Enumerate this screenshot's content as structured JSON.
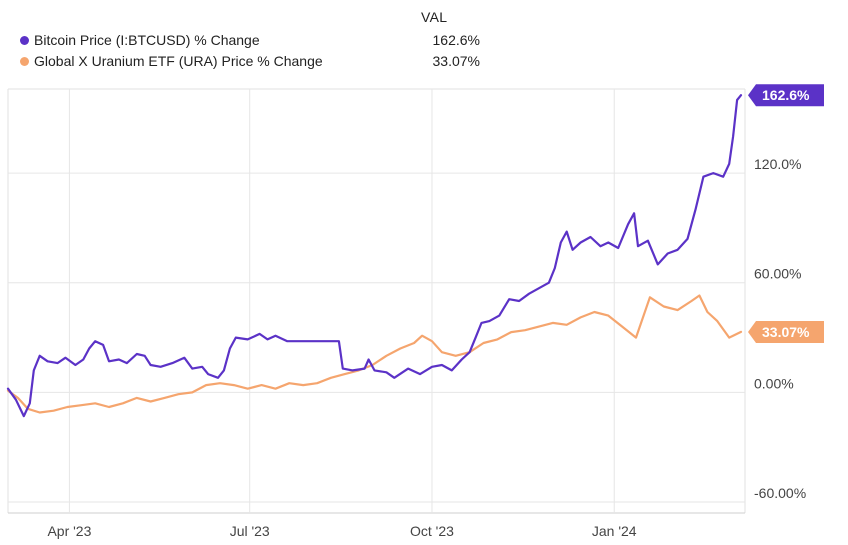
{
  "legend": {
    "header": "VAL",
    "items": [
      {
        "name": "Bitcoin Price (I:BTCUSD) % Change",
        "value": "162.6%",
        "color": "#5b32c7"
      },
      {
        "name": "Global X Uranium ETF (URA) Price % Change",
        "value": "33.07%",
        "color": "#f5a56e"
      }
    ]
  },
  "chart_data": {
    "type": "line",
    "y_ticks": [
      {
        "value": 120,
        "label": "120.0%"
      },
      {
        "value": 60,
        "label": "60.00%"
      },
      {
        "value": 0,
        "label": "0.00%"
      },
      {
        "value": -60,
        "label": "-60.00%"
      }
    ],
    "x_ticks": [
      {
        "date": "2023-04-01",
        "label": "Apr '23"
      },
      {
        "date": "2023-07-01",
        "label": "Jul '23"
      },
      {
        "date": "2023-10-01",
        "label": "Oct '23"
      },
      {
        "date": "2024-01-01",
        "label": "Jan '24"
      }
    ],
    "xlim": [
      "2023-03-01",
      "2024-03-07"
    ],
    "ylim": [
      -66,
      166
    ],
    "grid": true,
    "series": [
      {
        "name": "Bitcoin Price (I:BTCUSD) % Change",
        "color": "#5b32c7",
        "end_label": "162.6%",
        "points": [
          [
            "2023-03-01",
            2
          ],
          [
            "2023-03-05",
            -4
          ],
          [
            "2023-03-09",
            -13
          ],
          [
            "2023-03-12",
            -6
          ],
          [
            "2023-03-14",
            12
          ],
          [
            "2023-03-17",
            20
          ],
          [
            "2023-03-21",
            17
          ],
          [
            "2023-03-26",
            16
          ],
          [
            "2023-03-30",
            19
          ],
          [
            "2023-04-04",
            15
          ],
          [
            "2023-04-08",
            18
          ],
          [
            "2023-04-11",
            24
          ],
          [
            "2023-04-14",
            28
          ],
          [
            "2023-04-18",
            26
          ],
          [
            "2023-04-21",
            17
          ],
          [
            "2023-04-26",
            18
          ],
          [
            "2023-04-30",
            16
          ],
          [
            "2023-05-05",
            21
          ],
          [
            "2023-05-09",
            20
          ],
          [
            "2023-05-12",
            15
          ],
          [
            "2023-05-17",
            14
          ],
          [
            "2023-05-23",
            16
          ],
          [
            "2023-05-29",
            19
          ],
          [
            "2023-06-02",
            13
          ],
          [
            "2023-06-07",
            14
          ],
          [
            "2023-06-10",
            10
          ],
          [
            "2023-06-15",
            8
          ],
          [
            "2023-06-18",
            12
          ],
          [
            "2023-06-21",
            24
          ],
          [
            "2023-06-24",
            30
          ],
          [
            "2023-06-30",
            29
          ],
          [
            "2023-07-06",
            32
          ],
          [
            "2023-07-10",
            29
          ],
          [
            "2023-07-14",
            31
          ],
          [
            "2023-07-20",
            28
          ],
          [
            "2023-07-27",
            28
          ],
          [
            "2023-08-03",
            28
          ],
          [
            "2023-08-10",
            28
          ],
          [
            "2023-08-15",
            28
          ],
          [
            "2023-08-17",
            13
          ],
          [
            "2023-08-22",
            12
          ],
          [
            "2023-08-28",
            13
          ],
          [
            "2023-08-30",
            18
          ],
          [
            "2023-09-02",
            12
          ],
          [
            "2023-09-08",
            11
          ],
          [
            "2023-09-12",
            8
          ],
          [
            "2023-09-19",
            13
          ],
          [
            "2023-09-25",
            10
          ],
          [
            "2023-10-01",
            14
          ],
          [
            "2023-10-06",
            15
          ],
          [
            "2023-10-11",
            12
          ],
          [
            "2023-10-16",
            18
          ],
          [
            "2023-10-20",
            22
          ],
          [
            "2023-10-23",
            30
          ],
          [
            "2023-10-26",
            38
          ],
          [
            "2023-10-30",
            39
          ],
          [
            "2023-11-04",
            42
          ],
          [
            "2023-11-09",
            51
          ],
          [
            "2023-11-14",
            50
          ],
          [
            "2023-11-19",
            54
          ],
          [
            "2023-11-24",
            57
          ],
          [
            "2023-11-29",
            60
          ],
          [
            "2023-12-02",
            68
          ],
          [
            "2023-12-05",
            82
          ],
          [
            "2023-12-08",
            88
          ],
          [
            "2023-12-11",
            78
          ],
          [
            "2023-12-15",
            82
          ],
          [
            "2023-12-20",
            85
          ],
          [
            "2023-12-25",
            80
          ],
          [
            "2023-12-29",
            82
          ],
          [
            "2024-01-03",
            79
          ],
          [
            "2024-01-08",
            92
          ],
          [
            "2024-01-11",
            98
          ],
          [
            "2024-01-13",
            80
          ],
          [
            "2024-01-18",
            83
          ],
          [
            "2024-01-23",
            70
          ],
          [
            "2024-01-28",
            76
          ],
          [
            "2024-02-02",
            78
          ],
          [
            "2024-02-07",
            84
          ],
          [
            "2024-02-11",
            100
          ],
          [
            "2024-02-15",
            118
          ],
          [
            "2024-02-20",
            120
          ],
          [
            "2024-02-25",
            118
          ],
          [
            "2024-02-28",
            125
          ],
          [
            "2024-03-01",
            140
          ],
          [
            "2024-03-03",
            160
          ],
          [
            "2024-03-05",
            162.6
          ]
        ]
      },
      {
        "name": "Global X Uranium ETF (URA) Price % Change",
        "color": "#f5a56e",
        "end_label": "33.07%",
        "points": [
          [
            "2023-03-01",
            1
          ],
          [
            "2023-03-06",
            -3
          ],
          [
            "2023-03-11",
            -9
          ],
          [
            "2023-03-17",
            -11
          ],
          [
            "2023-03-24",
            -10
          ],
          [
            "2023-03-31",
            -8
          ],
          [
            "2023-04-07",
            -7
          ],
          [
            "2023-04-14",
            -6
          ],
          [
            "2023-04-21",
            -8
          ],
          [
            "2023-04-28",
            -6
          ],
          [
            "2023-05-05",
            -3
          ],
          [
            "2023-05-12",
            -5
          ],
          [
            "2023-05-19",
            -3
          ],
          [
            "2023-05-26",
            -1
          ],
          [
            "2023-06-02",
            0
          ],
          [
            "2023-06-09",
            4
          ],
          [
            "2023-06-16",
            5
          ],
          [
            "2023-06-23",
            4
          ],
          [
            "2023-06-30",
            2
          ],
          [
            "2023-07-07",
            4
          ],
          [
            "2023-07-14",
            2
          ],
          [
            "2023-07-21",
            5
          ],
          [
            "2023-07-28",
            4
          ],
          [
            "2023-08-04",
            5
          ],
          [
            "2023-08-11",
            8
          ],
          [
            "2023-08-18",
            10
          ],
          [
            "2023-08-25",
            12
          ],
          [
            "2023-09-01",
            15
          ],
          [
            "2023-09-08",
            20
          ],
          [
            "2023-09-15",
            24
          ],
          [
            "2023-09-22",
            27
          ],
          [
            "2023-09-26",
            31
          ],
          [
            "2023-10-01",
            28
          ],
          [
            "2023-10-06",
            22
          ],
          [
            "2023-10-13",
            20
          ],
          [
            "2023-10-20",
            22
          ],
          [
            "2023-10-27",
            27
          ],
          [
            "2023-11-03",
            29
          ],
          [
            "2023-11-10",
            33
          ],
          [
            "2023-11-17",
            34
          ],
          [
            "2023-11-24",
            36
          ],
          [
            "2023-12-01",
            38
          ],
          [
            "2023-12-08",
            37
          ],
          [
            "2023-12-15",
            41
          ],
          [
            "2023-12-22",
            44
          ],
          [
            "2023-12-29",
            42
          ],
          [
            "2024-01-05",
            36
          ],
          [
            "2024-01-12",
            30
          ],
          [
            "2024-01-19",
            52
          ],
          [
            "2024-01-26",
            47
          ],
          [
            "2024-02-02",
            45
          ],
          [
            "2024-02-09",
            50
          ],
          [
            "2024-02-13",
            53
          ],
          [
            "2024-02-17",
            44
          ],
          [
            "2024-02-22",
            39
          ],
          [
            "2024-02-28",
            30
          ],
          [
            "2024-03-05",
            33.07
          ]
        ]
      }
    ]
  }
}
